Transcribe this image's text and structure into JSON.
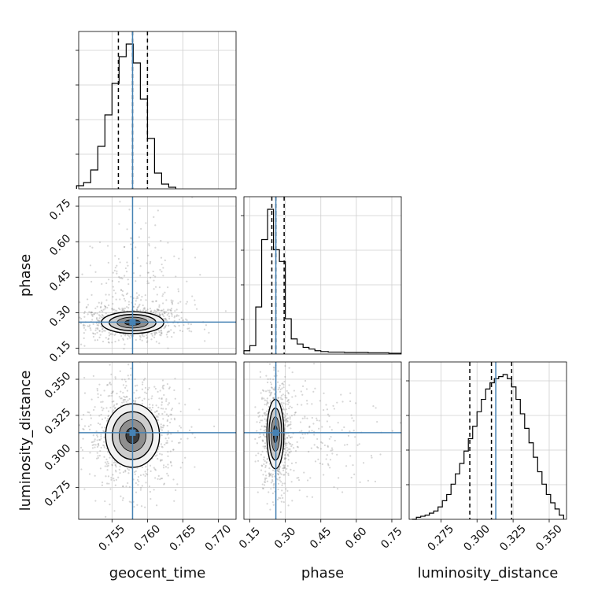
{
  "chart_data": {
    "type": "corner",
    "parameters": [
      {
        "name": "geocent_time",
        "ticks": [
          0.755,
          0.76,
          0.765,
          0.77
        ],
        "tick_labels": [
          "0.755",
          "0.760",
          "0.765",
          "0.770"
        ],
        "range": [
          0.7503,
          0.7725
        ],
        "truth": 0.7579,
        "quantiles": [
          0.7559,
          0.7579,
          0.76
        ]
      },
      {
        "name": "phase",
        "ticks": [
          0.15,
          0.3,
          0.45,
          0.6,
          0.75
        ],
        "tick_labels": [
          "0.15",
          "0.30",
          "0.45",
          "0.60",
          "0.75"
        ],
        "range": [
          0.125,
          0.79
        ],
        "truth": 0.26,
        "quantiles": [
          0.243,
          0.26,
          0.295
        ]
      },
      {
        "name": "luminosity_distance",
        "ticks": [
          0.275,
          0.3,
          0.325,
          0.35
        ],
        "tick_labels": [
          "0.275",
          "0.300",
          "0.325",
          "0.350"
        ],
        "range": [
          0.253,
          0.362
        ],
        "truth": 0.313,
        "quantiles": [
          0.295,
          0.31,
          0.324
        ]
      }
    ],
    "histograms": [
      {
        "param": "geocent_time",
        "bins": [
          0.7505,
          0.7515,
          0.7525,
          0.7535,
          0.7545,
          0.7555,
          0.7565,
          0.7575,
          0.7585,
          0.7595,
          0.7605,
          0.7615,
          0.7625,
          0.7635
        ],
        "counts": [
          2,
          4,
          12,
          27,
          47,
          67,
          84,
          92,
          80,
          57,
          32,
          10,
          3,
          1
        ]
      },
      {
        "param": "phase",
        "bins": [
          0.1375,
          0.1625,
          0.1875,
          0.2125,
          0.2375,
          0.2625,
          0.2875,
          0.3125,
          0.3375,
          0.3625,
          0.3875,
          0.4125,
          0.4375,
          0.4625,
          0.5,
          0.6,
          0.7,
          0.775
        ],
        "counts": [
          2,
          5,
          28,
          68,
          86,
          62,
          55,
          21,
          9,
          6,
          4,
          3,
          2,
          1.5,
          1.2,
          1,
          0.8,
          0.5
        ]
      },
      {
        "param": "luminosity_distance",
        "bins": [
          0.2565,
          0.2595,
          0.2625,
          0.2655,
          0.2685,
          0.2715,
          0.2745,
          0.2775,
          0.2805,
          0.2835,
          0.2865,
          0.2895,
          0.2925,
          0.2955,
          0.2985,
          0.3015,
          0.3045,
          0.3075,
          0.3105,
          0.3135,
          0.3165,
          0.3195,
          0.3225,
          0.3255,
          0.3285,
          0.3315,
          0.3345,
          0.3375,
          0.3405,
          0.3435,
          0.3465,
          0.3495,
          0.3525,
          0.3555,
          0.3585
        ],
        "counts": [
          0,
          1,
          1.5,
          2,
          3,
          4,
          6,
          9,
          12,
          17,
          22,
          27,
          33,
          39,
          45,
          52,
          58,
          63,
          66,
          68,
          69,
          70,
          68,
          64,
          58,
          51,
          44,
          37,
          30,
          23,
          17,
          12,
          8,
          5,
          2
        ]
      }
    ],
    "contours_2d": [
      {
        "x": "geocent_time",
        "y": "phase",
        "center": [
          0.7579,
          0.258
        ],
        "levels_sigma": [
          0.5,
          1.0,
          1.5,
          2.0
        ],
        "spread": [
          0.0022,
          0.023
        ]
      },
      {
        "x": "geocent_time",
        "y": "luminosity_distance",
        "center": [
          0.7579,
          0.311
        ],
        "levels_sigma": [
          0.5,
          1.0,
          1.5,
          2.0
        ],
        "spread": [
          0.0019,
          0.011
        ]
      },
      {
        "x": "phase",
        "y": "luminosity_distance",
        "center": [
          0.258,
          0.312
        ],
        "levels_sigma": [
          0.5,
          1.0,
          1.5,
          2.0
        ],
        "spread": [
          0.018,
          0.012
        ]
      }
    ],
    "grid": true,
    "truth_color": "#4682b4",
    "line_color": "#000000"
  }
}
